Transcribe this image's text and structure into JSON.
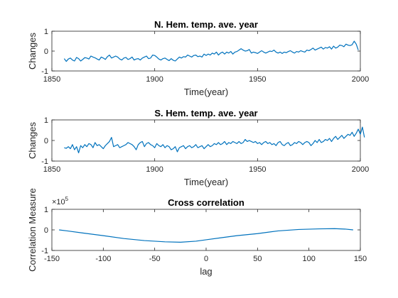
{
  "figure": {
    "bg": "#ffffff",
    "line_color": "#0072BD"
  },
  "chart_data": [
    {
      "type": "line",
      "title": "N. Hem. temp. ave. year",
      "xlabel": "Time(year)",
      "ylabel": "Changes",
      "xlim": [
        1850,
        2000
      ],
      "ylim": [
        -1,
        1
      ],
      "xticks": [
        1850,
        1900,
        1950,
        2000
      ],
      "yticks": [
        -1,
        0,
        1
      ],
      "grid": true,
      "x_start": 1856,
      "x_step": 1,
      "y": [
        -0.38,
        -0.52,
        -0.4,
        -0.35,
        -0.45,
        -0.5,
        -0.32,
        -0.38,
        -0.5,
        -0.42,
        -0.33,
        -0.35,
        -0.4,
        -0.25,
        -0.3,
        -0.34,
        -0.4,
        -0.45,
        -0.3,
        -0.35,
        -0.42,
        -0.28,
        -0.2,
        -0.35,
        -0.3,
        -0.25,
        -0.3,
        -0.4,
        -0.45,
        -0.35,
        -0.32,
        -0.42,
        -0.38,
        -0.3,
        -0.45,
        -0.4,
        -0.38,
        -0.45,
        -0.35,
        -0.3,
        -0.25,
        -0.38,
        -0.35,
        -0.2,
        -0.22,
        -0.3,
        -0.4,
        -0.45,
        -0.38,
        -0.35,
        -0.42,
        -0.48,
        -0.38,
        -0.46,
        -0.5,
        -0.4,
        -0.3,
        -0.35,
        -0.28,
        -0.3,
        -0.2,
        -0.25,
        -0.3,
        -0.22,
        -0.2,
        -0.28,
        -0.25,
        -0.3,
        -0.15,
        -0.22,
        -0.15,
        -0.2,
        -0.1,
        -0.15,
        -0.05,
        -0.2,
        -0.1,
        -0.05,
        -0.15,
        -0.05,
        -0.1,
        -0.02,
        -0.15,
        -0.05,
        -0.02,
        0.05,
        0.12,
        0.05,
        0.0,
        0.02,
        0.08,
        -0.1,
        -0.05,
        -0.08,
        -0.12,
        -0.05,
        0.02,
        -0.05,
        -0.1,
        -0.05,
        0.0,
        -0.02,
        0.05,
        -0.05,
        -0.1,
        -0.05,
        -0.12,
        -0.05,
        -0.08,
        -0.02,
        0.02,
        -0.05,
        -0.1,
        -0.02,
        -0.05,
        0.02,
        -0.02,
        -0.05,
        0.05,
        0.02,
        0.08,
        0.15,
        0.05,
        0.1,
        0.15,
        0.2,
        0.1,
        0.18,
        0.15,
        0.22,
        0.1,
        0.25,
        0.15,
        0.2,
        0.3,
        0.28,
        0.22,
        0.35,
        0.3,
        0.28,
        0.32,
        0.5,
        0.35,
        0.05
      ]
    },
    {
      "type": "line",
      "title": "S. Hem. temp. ave. year",
      "xlabel": "Time(year)",
      "ylabel": "Changes",
      "xlim": [
        1850,
        2000
      ],
      "ylim": [
        -1,
        1
      ],
      "xticks": [
        1850,
        1900,
        1950,
        2000
      ],
      "yticks": [
        -1,
        0,
        1
      ],
      "grid": true,
      "x_start": 1856,
      "x_step": 1,
      "y": [
        -0.35,
        -0.38,
        -0.3,
        -0.4,
        -0.2,
        -0.45,
        -0.3,
        -0.6,
        -0.25,
        -0.35,
        -0.2,
        -0.3,
        -0.15,
        -0.2,
        -0.35,
        -0.1,
        -0.25,
        -0.2,
        -0.3,
        -0.4,
        -0.25,
        -0.15,
        -0.05,
        0.15,
        -0.3,
        -0.25,
        -0.2,
        -0.35,
        -0.3,
        -0.25,
        -0.2,
        -0.1,
        -0.15,
        -0.2,
        -0.3,
        -0.45,
        -0.2,
        -0.1,
        -0.05,
        -0.3,
        -0.15,
        -0.1,
        -0.2,
        -0.25,
        -0.35,
        -0.15,
        -0.25,
        -0.3,
        -0.2,
        -0.35,
        -0.25,
        -0.3,
        -0.45,
        -0.4,
        -0.3,
        -0.55,
        -0.35,
        -0.3,
        -0.25,
        -0.4,
        -0.3,
        -0.25,
        -0.35,
        -0.3,
        -0.2,
        -0.35,
        -0.3,
        -0.25,
        -0.4,
        -0.3,
        -0.2,
        -0.3,
        -0.25,
        -0.15,
        -0.2,
        -0.1,
        -0.2,
        -0.15,
        -0.05,
        -0.2,
        -0.1,
        -0.15,
        -0.05,
        -0.1,
        -0.15,
        -0.05,
        -0.15,
        -0.1,
        0.05,
        -0.05,
        0.0,
        -0.05,
        -0.1,
        -0.05,
        -0.15,
        -0.1,
        -0.2,
        -0.1,
        -0.05,
        -0.15,
        -0.1,
        -0.2,
        -0.15,
        -0.25,
        -0.1,
        -0.05,
        -0.2,
        -0.25,
        -0.15,
        -0.1,
        -0.25,
        -0.2,
        -0.1,
        -0.15,
        -0.05,
        -0.1,
        -0.2,
        -0.1,
        -0.05,
        -0.1,
        -0.25,
        -0.15,
        0.0,
        -0.1,
        0.05,
        -0.1,
        -0.05,
        0.05,
        0.0,
        0.1,
        -0.05,
        0.1,
        0.2,
        0.05,
        0.15,
        0.25,
        0.1,
        0.2,
        0.3,
        0.25,
        0.4,
        0.2,
        0.35,
        0.55,
        0.3,
        0.65,
        0.15
      ]
    },
    {
      "type": "line",
      "title": "Cross correlation",
      "xlabel": "lag",
      "ylabel": "Correlation Measure",
      "y_exponent_base": "×10",
      "y_exponent_power": "5",
      "xlim": [
        -150,
        150
      ],
      "ylim": [
        -1,
        1
      ],
      "xticks": [
        -150,
        -100,
        -50,
        0,
        50,
        100,
        150
      ],
      "yticks": [
        -1,
        0,
        1
      ],
      "grid": true,
      "x_start": -143,
      "x_step": 1,
      "curve_points": [
        [
          -143,
          0.0
        ],
        [
          -135,
          -0.05
        ],
        [
          -120,
          -0.15
        ],
        [
          -100,
          -0.28
        ],
        [
          -80,
          -0.42
        ],
        [
          -60,
          -0.52
        ],
        [
          -50,
          -0.55
        ],
        [
          -40,
          -0.58
        ],
        [
          -25,
          -0.6
        ],
        [
          -10,
          -0.55
        ],
        [
          0,
          -0.48
        ],
        [
          15,
          -0.38
        ],
        [
          30,
          -0.28
        ],
        [
          50,
          -0.18
        ],
        [
          70,
          -0.05
        ],
        [
          90,
          0.02
        ],
        [
          110,
          0.05
        ],
        [
          125,
          0.06
        ],
        [
          135,
          0.04
        ],
        [
          143,
          0.0
        ]
      ]
    }
  ]
}
